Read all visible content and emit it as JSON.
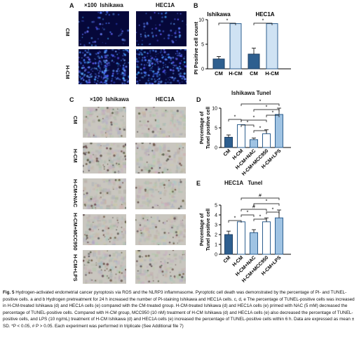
{
  "panel_a": {
    "label": "A",
    "magnification": "×100",
    "col1": "Ishikawa",
    "col2": "HEC1A",
    "row1": "CM",
    "row2": "H-CM"
  },
  "panel_c": {
    "label": "C",
    "magnification": "×100",
    "col1": "Ishikawa",
    "col2": "HEC1A",
    "rows": [
      "CM",
      "H-CM",
      "H-CM+NAC",
      "H-CM+MCC950",
      "H-CM+LPS"
    ]
  },
  "colors": {
    "dark_bar": "#2e5f8f",
    "light_bar": "#cfe2f3",
    "mid_bar": "#9fc3e3",
    "fluor_bg": "#06083a"
  },
  "chart_data": [
    {
      "panel": "B",
      "type": "bar",
      "ylabel": "PI Positive cell count",
      "group_titles": [
        "Ishikawa",
        "HEC1A"
      ],
      "categories": [
        "CM",
        "H-CM",
        "CM",
        "H-CM"
      ],
      "values": [
        2,
        9.2,
        3,
        9.2
      ],
      "errors": [
        0.5,
        0,
        1.2,
        0
      ],
      "ylim": [
        0,
        10
      ],
      "yticks": [
        "0",
        "5",
        "10"
      ],
      "significance": [
        "*",
        "*"
      ]
    },
    {
      "panel": "D",
      "type": "bar",
      "title": "Ishikawa Tunel",
      "ylabel": "Percentage of\nTunel positive cell",
      "categories": [
        "CM",
        "H-CM",
        "H-CM+NAC",
        "H-CM+MCC950",
        "H-CM+LPS"
      ],
      "values": [
        2.6,
        5.8,
        2.0,
        3.5,
        8.4
      ],
      "errors": [
        0.6,
        0,
        0.4,
        1.0,
        1.6
      ],
      "ylim": [
        0,
        10
      ],
      "yticks": [
        "0",
        "5",
        "10"
      ],
      "significance": [
        "*",
        "*",
        "*",
        "*",
        "*",
        "*",
        "*"
      ]
    },
    {
      "panel": "E",
      "type": "bar",
      "title": "HEC1A   Tunel",
      "ylabel": "Percentage of\nTunel positive cell",
      "categories": [
        "CM",
        "H-CM",
        "H-CM+NAC",
        "H-CM+MCC950",
        "H-CM+LPS"
      ],
      "values": [
        2.0,
        3.3,
        2.2,
        3.3,
        3.7
      ],
      "errors": [
        0.35,
        0,
        0.3,
        0.4,
        0.8
      ],
      "ylim": [
        0,
        5
      ],
      "yticks": [
        "0",
        "1",
        "2",
        "3",
        "4",
        "5"
      ],
      "significance": [
        "*",
        "#",
        "*",
        "*",
        "#",
        "*",
        "*"
      ]
    }
  ],
  "caption": {
    "fig_label": "Fig. 5",
    "title_text": "Hydrogen-activated endometrial cancer pyroptosis via ROS and the NLRP3 inflammasome.",
    "body": "Pyroptotic cell death was demonstrated by the percentage of PI- and TUNEL-positive cells. a and b Hydrogen pretreatment for 24 h increased the number of PI-staining Ishikawa and HEC1A cells. c, d, e The percentage of TUNEL-positive cells was increased in H-CM-treated Ishikawa (d) and HEC1A cells (e) compared with the CM-treated group. H-CM-treated Ishikawa (d) and HEC1A cells (e) primed with NAC (5 mM) decreased the percentage of TUNEL-positive cells. Compared with H-CM group, MCC950 (10 nM) treatment of H-CM Ishikawa (d) and HEC1A cells (e) also decreased the percentage of TUNEL-positive cells, and LPS (10 ng/mL) treatment of H-CM Ishikawa (d) and HEC1A cells (e) increased the percentage of TUNEL-positive cells within 6 h. Data are expressed as mean ± SD. *P < 0.05, # P > 0.05. Each experiment was performed in triplicate (See Additional file 7)"
  }
}
